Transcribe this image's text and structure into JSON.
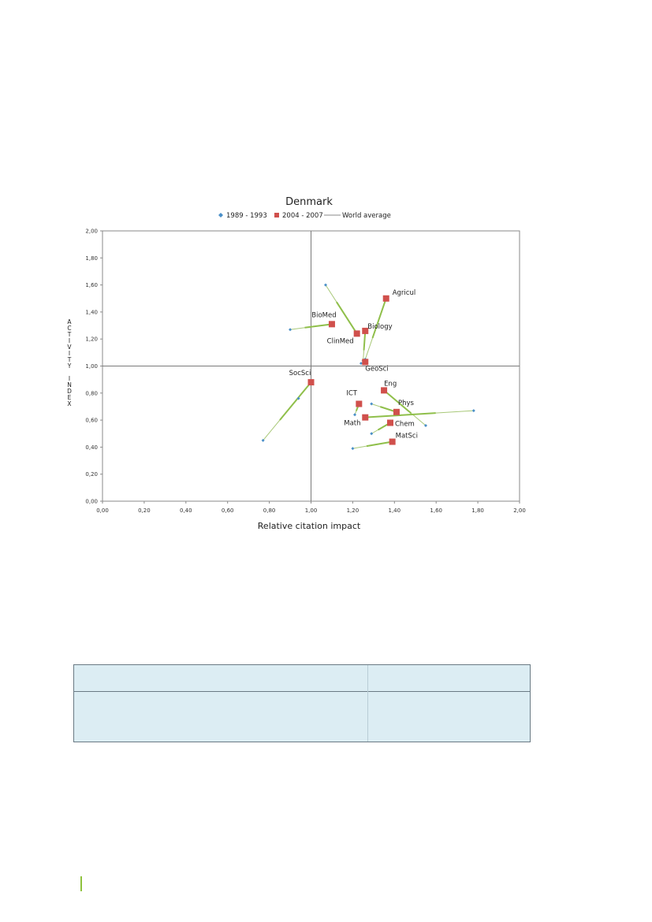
{
  "chart_data": {
    "type": "scatter",
    "title": "Denmark",
    "xlabel": "Relative citation impact",
    "ylabel": "ACTIVITY INDEX",
    "xlim": [
      0,
      2
    ],
    "ylim": [
      0,
      2
    ],
    "x_ticks": [
      "0,00",
      "0,20",
      "0,40",
      "0,60",
      "0,80",
      "1,00",
      "1,20",
      "1,40",
      "1,60",
      "1,80",
      "2,00"
    ],
    "y_ticks": [
      "0,00",
      "0,20",
      "0,40",
      "0,60",
      "0,80",
      "1,00",
      "1,20",
      "1,40",
      "1,60",
      "1,80",
      "2,00"
    ],
    "grid": false,
    "reference_lines": {
      "x": 1.0,
      "y": 1.0
    },
    "legend": {
      "placement": "top",
      "entries": [
        "1989 - 1993",
        "2004 - 2007",
        "World average"
      ]
    },
    "series": [
      {
        "name": "1989 - 1993",
        "color": "#4a8fc8",
        "marker": "diamond"
      },
      {
        "name": "2004 - 2007",
        "color": "#d0504c",
        "marker": "square"
      },
      {
        "name": "World average",
        "color": "#888888",
        "marker": "line"
      }
    ],
    "fields": [
      {
        "label": "Agricul",
        "x1": 1.26,
        "y1": 1.05,
        "x2": 1.36,
        "y2": 1.5
      },
      {
        "label": "BioMed",
        "x1": 0.9,
        "y1": 1.27,
        "x2": 1.1,
        "y2": 1.31
      },
      {
        "label": "Biology",
        "x1": 1.25,
        "y1": 1.04,
        "x2": 1.26,
        "y2": 1.26
      },
      {
        "label": "ClinMed",
        "x1": 1.07,
        "y1": 1.6,
        "x2": 1.22,
        "y2": 1.24
      },
      {
        "label": "GeoSci",
        "x1": 1.24,
        "y1": 1.02,
        "x2": 1.26,
        "y2": 1.03
      },
      {
        "label": "SocSci",
        "x1": 0.77,
        "y1": 0.45,
        "x2": 1.0,
        "y2": 0.88
      },
      {
        "label": "Eng",
        "x1": 1.55,
        "y1": 0.56,
        "x2": 1.35,
        "y2": 0.82
      },
      {
        "label": "ICT",
        "x1": 1.21,
        "y1": 0.64,
        "x2": 1.23,
        "y2": 0.72
      },
      {
        "label": "Phys",
        "x1": 1.29,
        "y1": 0.72,
        "x2": 1.41,
        "y2": 0.66
      },
      {
        "label": "Math",
        "x1": 1.78,
        "y1": 0.67,
        "x2": 1.26,
        "y2": 0.62
      },
      {
        "label": "Chem",
        "x1": 1.29,
        "y1": 0.5,
        "x2": 1.38,
        "y2": 0.58
      },
      {
        "label": "MatSci",
        "x1": 1.2,
        "y1": 0.39,
        "x2": 1.39,
        "y2": 0.44
      }
    ],
    "extra_points_1989_1993": [
      {
        "x": 0.94,
        "y": 0.76
      }
    ]
  }
}
